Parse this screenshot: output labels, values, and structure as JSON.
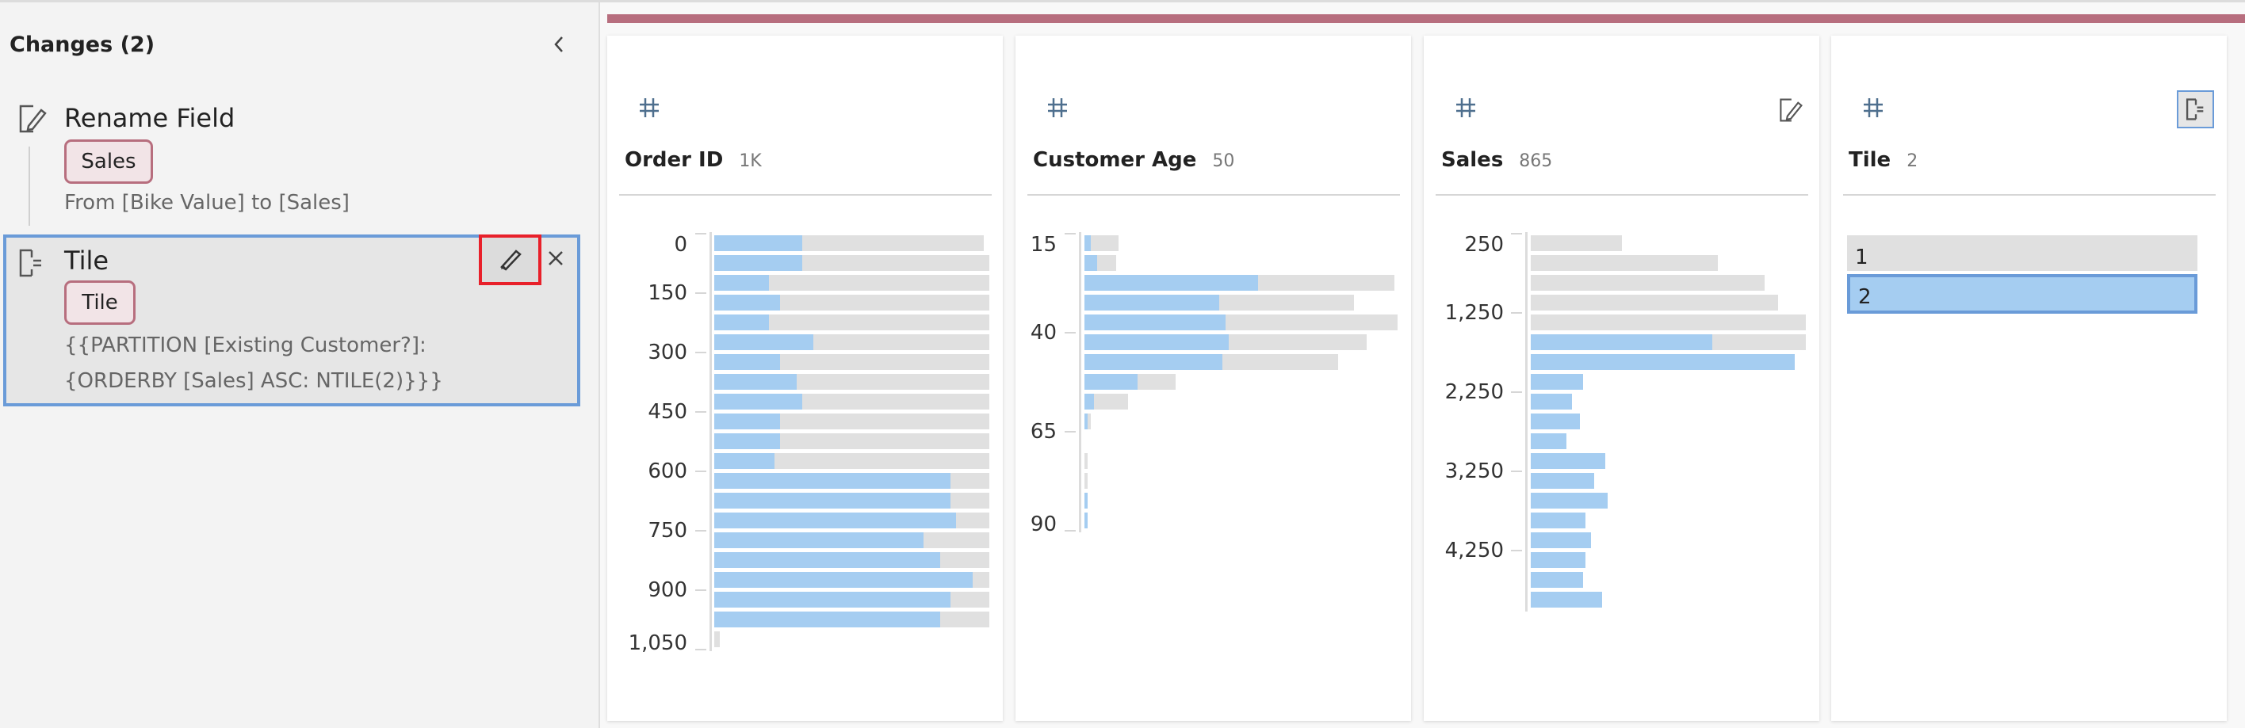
{
  "changes_panel": {
    "title": "Changes (2)",
    "items": [
      {
        "title": "Rename Field",
        "badge": "Sales",
        "description": "From [Bike Value] to [Sales]"
      },
      {
        "title": "Tile",
        "badge": "Tile",
        "description_lines": [
          "{{PARTITION [Existing Customer?]:",
          "{ORDERBY [Sales] ASC: NTILE(2)}}}"
        ],
        "selected": true
      }
    ]
  },
  "colors": {
    "accent": "#b76e7e",
    "bar_highlight": "#a5cdf1",
    "bar_base": "#e0e0e0",
    "selection": "#6a9bd8",
    "focus_outline": "#e8202a"
  },
  "profile_cards": [
    {
      "name": "Order ID",
      "count": "1K",
      "type_icon": "number-hash-icon",
      "histogram": {
        "start": 0,
        "bin_width": 50,
        "bins": [
          [
            0.32,
            0.98
          ],
          [
            0.32,
            1
          ],
          [
            0.2,
            1
          ],
          [
            0.24,
            1
          ],
          [
            0.2,
            1
          ],
          [
            0.36,
            1
          ],
          [
            0.24,
            1
          ],
          [
            0.3,
            1
          ],
          [
            0.32,
            1
          ],
          [
            0.24,
            1
          ],
          [
            0.24,
            1
          ],
          [
            0.22,
            1
          ],
          [
            0.86,
            1
          ],
          [
            0.86,
            1
          ],
          [
            0.88,
            1
          ],
          [
            0.76,
            1
          ],
          [
            0.82,
            1
          ],
          [
            0.94,
            1
          ],
          [
            0.86,
            1
          ],
          [
            0.82,
            1
          ],
          [
            0,
            0.02
          ]
        ],
        "ticks": [
          {
            "label": "0",
            "value": 0
          },
          {
            "label": "150",
            "value": 150
          },
          {
            "label": "300",
            "value": 300
          },
          {
            "label": "450",
            "value": 450
          },
          {
            "label": "600",
            "value": 600
          },
          {
            "label": "750",
            "value": 750
          },
          {
            "label": "900",
            "value": 900
          },
          {
            "label": "1,050",
            "value": 1050
          }
        ]
      }
    },
    {
      "name": "Customer Age",
      "count": "50",
      "type_icon": "number-hash-icon",
      "histogram": {
        "start": 15,
        "bin_width": 5,
        "bins": [
          [
            0.02,
            0.11
          ],
          [
            0.04,
            0.1
          ],
          [
            0.555,
            0.99
          ],
          [
            0.43,
            0.86
          ],
          [
            0.45,
            1
          ],
          [
            0.46,
            0.9
          ],
          [
            0.44,
            0.81
          ],
          [
            0.17,
            0.29
          ],
          [
            0.03,
            0.14
          ],
          [
            0.01,
            0.02
          ],
          [
            0,
            0
          ],
          [
            0,
            0.01
          ],
          [
            0,
            0.01
          ],
          [
            0.01,
            0.01
          ],
          [
            0.01,
            0.01
          ]
        ],
        "ticks": [
          {
            "label": "15",
            "value": 15
          },
          {
            "label": "40",
            "value": 40
          },
          {
            "label": "65",
            "value": 65
          },
          {
            "label": "90",
            "value": 90
          }
        ]
      }
    },
    {
      "name": "Sales",
      "count": "865",
      "type_icon": "number-hash-icon",
      "action_icon": "rename-edit-icon",
      "histogram": {
        "start": 250,
        "bin_width": 250,
        "bins": [
          [
            0,
            0.33
          ],
          [
            0,
            0.68
          ],
          [
            0,
            0.85
          ],
          [
            0,
            0.9
          ],
          [
            0,
            1
          ],
          [
            0.66,
            1
          ],
          [
            0.96,
            0.96
          ],
          [
            0.19,
            0.19
          ],
          [
            0.15,
            0.15
          ],
          [
            0.18,
            0.18
          ],
          [
            0.13,
            0.13
          ],
          [
            0.27,
            0.27
          ],
          [
            0.23,
            0.23
          ],
          [
            0.28,
            0.28
          ],
          [
            0.2,
            0.2
          ],
          [
            0.22,
            0.22
          ],
          [
            0.2,
            0.2
          ],
          [
            0.19,
            0.19
          ],
          [
            0.26,
            0.26
          ]
        ],
        "ticks": [
          {
            "label": "250",
            "value": 250
          },
          {
            "label": "1,250",
            "value": 1250
          },
          {
            "label": "2,250",
            "value": 2250
          },
          {
            "label": "3,250",
            "value": 3250
          },
          {
            "label": "4,250",
            "value": 4250
          }
        ]
      }
    },
    {
      "name": "Tile",
      "count": "2",
      "type_icon": "number-hash-icon",
      "action_icon": "calculated-field-icon",
      "values": [
        {
          "label": "1",
          "selected": false
        },
        {
          "label": "2",
          "selected": true
        }
      ]
    }
  ]
}
